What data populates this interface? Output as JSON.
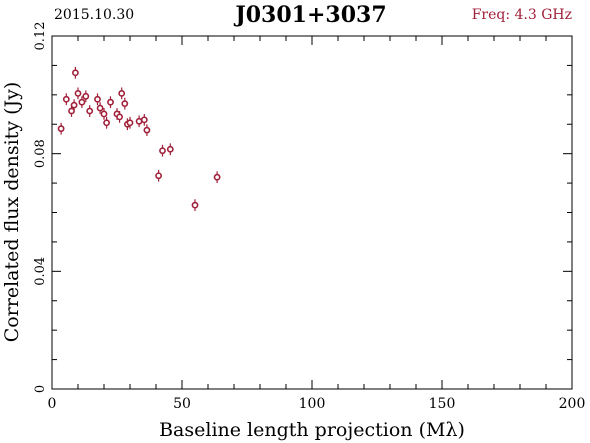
{
  "header": {
    "date": "2015.10.30",
    "source": "J0301+3037",
    "freq_label": "Freq: 4.3 GHz"
  },
  "colors": {
    "marker": "#a0203a",
    "axes": "#000000"
  },
  "chart_data": {
    "type": "scatter",
    "title": "J0301+3037",
    "xlabel": "Baseline length projection (Mλ)",
    "ylabel": "Correlated flux density (Jy)",
    "xlim": [
      0,
      200
    ],
    "ylim": [
      0,
      0.12
    ],
    "xticks": [
      0,
      50,
      100,
      150,
      200
    ],
    "xtick_labels": [
      "0",
      "50",
      "100",
      "150",
      "200"
    ],
    "yticks": [
      0,
      0.04,
      0.08,
      0.12
    ],
    "ytick_labels": [
      "0",
      "0.04",
      "0.08",
      "0.12"
    ],
    "grid": false,
    "points": [
      {
        "x": 3.5,
        "y": 0.0885,
        "err": 0.002
      },
      {
        "x": 5.5,
        "y": 0.0985,
        "err": 0.002
      },
      {
        "x": 7.5,
        "y": 0.0945,
        "err": 0.002
      },
      {
        "x": 8.5,
        "y": 0.0965,
        "err": 0.002
      },
      {
        "x": 9.0,
        "y": 0.1075,
        "err": 0.002
      },
      {
        "x": 10.0,
        "y": 0.1005,
        "err": 0.002
      },
      {
        "x": 11.5,
        "y": 0.0975,
        "err": 0.002
      },
      {
        "x": 13.0,
        "y": 0.0995,
        "err": 0.002
      },
      {
        "x": 14.5,
        "y": 0.0945,
        "err": 0.002
      },
      {
        "x": 17.5,
        "y": 0.0985,
        "err": 0.002
      },
      {
        "x": 18.5,
        "y": 0.0955,
        "err": 0.002
      },
      {
        "x": 20.0,
        "y": 0.0935,
        "err": 0.002
      },
      {
        "x": 21.0,
        "y": 0.0905,
        "err": 0.002
      },
      {
        "x": 22.5,
        "y": 0.0975,
        "err": 0.002
      },
      {
        "x": 25.0,
        "y": 0.0935,
        "err": 0.002
      },
      {
        "x": 26.0,
        "y": 0.0925,
        "err": 0.002
      },
      {
        "x": 26.8,
        "y": 0.1005,
        "err": 0.002
      },
      {
        "x": 28.0,
        "y": 0.097,
        "err": 0.002
      },
      {
        "x": 29.0,
        "y": 0.09,
        "err": 0.002
      },
      {
        "x": 30.0,
        "y": 0.0905,
        "err": 0.002
      },
      {
        "x": 33.5,
        "y": 0.091,
        "err": 0.002
      },
      {
        "x": 35.5,
        "y": 0.0915,
        "err": 0.002
      },
      {
        "x": 36.5,
        "y": 0.088,
        "err": 0.002
      },
      {
        "x": 41.0,
        "y": 0.0725,
        "err": 0.002
      },
      {
        "x": 42.5,
        "y": 0.081,
        "err": 0.002
      },
      {
        "x": 45.5,
        "y": 0.0815,
        "err": 0.002
      },
      {
        "x": 55.0,
        "y": 0.0625,
        "err": 0.002
      },
      {
        "x": 63.5,
        "y": 0.072,
        "err": 0.002
      }
    ]
  }
}
